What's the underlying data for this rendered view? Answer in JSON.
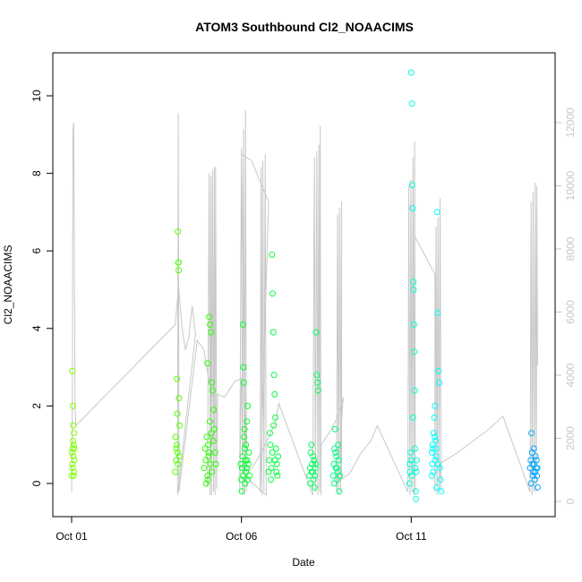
{
  "chart_data": {
    "type": "scatter",
    "title": "ATOM3 Southbound Cl2_NOAACIMS",
    "xlabel": "Date",
    "ylabel": "Cl2_NOAACIMS",
    "x_range_days": [
      0,
      14
    ],
    "ylim": [
      -0.9,
      11
    ],
    "y2lim": [
      -400,
      13200
    ],
    "x_ticks": [
      {
        "day": 0,
        "label": "Oct 01"
      },
      {
        "day": 5,
        "label": "Oct 06"
      },
      {
        "day": 10,
        "label": "Oct 11"
      }
    ],
    "y_ticks": [
      0,
      2,
      4,
      6,
      8,
      10
    ],
    "y2_ticks": [
      0,
      2000,
      4000,
      6000,
      8000,
      10000,
      12000
    ],
    "secondary_series": {
      "description_hidden": true,
      "color": "#c8c8c8",
      "points": [
        [
          0.0,
          300
        ],
        [
          0.02,
          3000
        ],
        [
          0.04,
          11800
        ],
        [
          0.06,
          12000
        ],
        [
          0.08,
          8000
        ],
        [
          0.1,
          3000
        ],
        [
          0.12,
          2400
        ],
        [
          3.05,
          5600
        ],
        [
          3.15,
          6800
        ],
        [
          3.25,
          5500
        ],
        [
          3.35,
          4800
        ],
        [
          3.45,
          5200
        ],
        [
          3.55,
          6200
        ],
        [
          3.65,
          5300
        ],
        [
          3.12,
          200
        ],
        [
          3.14,
          12300
        ],
        [
          3.16,
          300
        ],
        [
          3.7,
          5100
        ],
        [
          3.9,
          4800
        ],
        [
          4.0,
          4100
        ],
        [
          4.1,
          3500
        ],
        [
          4.2,
          3200
        ],
        [
          4.25,
          3000
        ],
        [
          4.0,
          500
        ],
        [
          4.05,
          10400
        ],
        [
          4.08,
          200
        ],
        [
          4.1,
          10300
        ],
        [
          4.12,
          200
        ],
        [
          4.15,
          10500
        ],
        [
          4.18,
          300
        ],
        [
          4.2,
          10600
        ],
        [
          4.22,
          200
        ],
        [
          4.24,
          10600
        ],
        [
          4.27,
          400
        ],
        [
          4.3,
          3400
        ],
        [
          4.5,
          3300
        ],
        [
          4.8,
          3800
        ],
        [
          5.0,
          3900
        ],
        [
          4.95,
          300
        ],
        [
          5.0,
          11200
        ],
        [
          5.03,
          200
        ],
        [
          5.06,
          11800
        ],
        [
          5.09,
          200
        ],
        [
          5.12,
          12400
        ],
        [
          5.15,
          300
        ],
        [
          5.0,
          11000
        ],
        [
          5.3,
          10800
        ],
        [
          5.6,
          10000
        ],
        [
          5.8,
          9500
        ],
        [
          5.55,
          300
        ],
        [
          5.58,
          10600
        ],
        [
          5.6,
          200
        ],
        [
          5.63,
          10800
        ],
        [
          5.66,
          300
        ],
        [
          5.7,
          11000
        ],
        [
          5.73,
          200
        ],
        [
          5.1,
          800
        ],
        [
          5.4,
          1200
        ],
        [
          5.7,
          1800
        ],
        [
          6.0,
          2500
        ],
        [
          6.1,
          3100
        ],
        [
          7.1,
          200
        ],
        [
          7.15,
          10900
        ],
        [
          7.18,
          300
        ],
        [
          7.22,
          11100
        ],
        [
          7.25,
          200
        ],
        [
          7.28,
          11300
        ],
        [
          7.3,
          300
        ],
        [
          7.32,
          11900
        ],
        [
          7.34,
          200
        ],
        [
          7.35,
          1800
        ],
        [
          7.6,
          2200
        ],
        [
          7.8,
          2600
        ],
        [
          8.0,
          3300
        ],
        [
          7.8,
          300
        ],
        [
          7.83,
          9100
        ],
        [
          7.86,
          200
        ],
        [
          7.89,
          9300
        ],
        [
          7.92,
          300
        ],
        [
          7.95,
          9500
        ],
        [
          7.95,
          700
        ],
        [
          8.2,
          900
        ],
        [
          8.5,
          1500
        ],
        [
          8.8,
          1900
        ],
        [
          9.0,
          2400
        ],
        [
          9.9,
          300
        ],
        [
          9.93,
          10000
        ],
        [
          9.96,
          200
        ],
        [
          9.99,
          10200
        ],
        [
          10.02,
          300
        ],
        [
          10.05,
          10900
        ],
        [
          10.08,
          200
        ],
        [
          10.1,
          11400
        ],
        [
          10.12,
          300
        ],
        [
          10.1,
          8400
        ],
        [
          10.4,
          7800
        ],
        [
          10.7,
          7200
        ],
        [
          10.7,
          300
        ],
        [
          10.73,
          8700
        ],
        [
          10.76,
          200
        ],
        [
          10.79,
          9000
        ],
        [
          10.82,
          300
        ],
        [
          10.85,
          9600
        ],
        [
          10.88,
          300
        ],
        [
          10.85,
          1200
        ],
        [
          11.3,
          1500
        ],
        [
          11.8,
          1900
        ],
        [
          12.3,
          2300
        ],
        [
          12.7,
          2700
        ],
        [
          13.5,
          300
        ],
        [
          13.53,
          9500
        ],
        [
          13.56,
          200
        ],
        [
          13.59,
          9800
        ],
        [
          13.62,
          300
        ],
        [
          13.65,
          10100
        ],
        [
          13.68,
          300
        ],
        [
          13.7,
          10000
        ],
        [
          13.72,
          4300
        ]
      ]
    },
    "series": [
      {
        "color": "#80ff00",
        "points": [
          [
            0.0,
            0.2
          ],
          [
            0.02,
            0.5
          ],
          [
            0.03,
            0.9
          ],
          [
            0.04,
            1.1
          ],
          [
            0.05,
            0.7
          ],
          [
            0.06,
            1.0
          ],
          [
            0.07,
            0.3
          ],
          [
            0.08,
            0.6
          ],
          [
            0.02,
            2.9
          ],
          [
            0.04,
            2.0
          ],
          [
            0.05,
            1.5
          ],
          [
            0.06,
            0.2
          ],
          [
            0.01,
            0.8
          ],
          [
            0.03,
            0.4
          ],
          [
            0.07,
            1.3
          ],
          [
            0.08,
            0.9
          ]
        ]
      },
      {
        "color": "#55ff00",
        "points": [
          [
            3.05,
            0.3
          ],
          [
            3.08,
            0.6
          ],
          [
            3.1,
            1.0
          ],
          [
            3.12,
            0.8
          ],
          [
            3.14,
            5.7
          ],
          [
            3.15,
            5.7
          ],
          [
            3.15,
            5.5
          ],
          [
            3.13,
            6.5
          ],
          [
            3.1,
            2.7
          ],
          [
            3.16,
            2.2
          ],
          [
            3.18,
            1.5
          ],
          [
            3.06,
            1.2
          ],
          [
            3.09,
            0.9
          ],
          [
            3.11,
            1.8
          ],
          [
            3.13,
            0.5
          ],
          [
            3.17,
            0.7
          ]
        ]
      },
      {
        "color": "#2bff00",
        "points": [
          [
            3.9,
            0.4
          ],
          [
            3.95,
            0.6
          ],
          [
            4.0,
            0.2
          ],
          [
            4.02,
            1.0
          ],
          [
            4.05,
            4.3
          ],
          [
            4.08,
            4.1
          ],
          [
            4.1,
            3.9
          ],
          [
            4.12,
            2.6
          ],
          [
            4.15,
            2.4
          ],
          [
            4.18,
            1.9
          ],
          [
            4.0,
            3.1
          ],
          [
            4.2,
            1.4
          ],
          [
            4.22,
            0.8
          ],
          [
            4.25,
            0.5
          ],
          [
            3.93,
            0.9
          ],
          [
            3.98,
            1.2
          ],
          [
            4.03,
            0.7
          ],
          [
            4.07,
            1.6
          ],
          [
            4.13,
            0.3
          ],
          [
            4.17,
            1.1
          ],
          [
            3.96,
            0.0
          ],
          [
            4.01,
            0.1
          ],
          [
            4.04,
            0.8
          ],
          [
            4.09,
            0.5
          ],
          [
            4.11,
            1.3
          ]
        ]
      },
      {
        "color": "#00ff2b",
        "points": [
          [
            5.0,
            0.1
          ],
          [
            5.02,
            0.4
          ],
          [
            5.04,
            0.2
          ],
          [
            5.05,
            4.1
          ],
          [
            5.06,
            3.0
          ],
          [
            5.07,
            2.6
          ],
          [
            5.08,
            1.2
          ],
          [
            5.1,
            0.9
          ],
          [
            5.12,
            0.6
          ],
          [
            5.14,
            0.3
          ],
          [
            5.16,
            1.6
          ],
          [
            5.18,
            2.0
          ],
          [
            5.2,
            0.5
          ],
          [
            5.22,
            0.8
          ],
          [
            5.24,
            0.2
          ],
          [
            4.98,
            0.5
          ],
          [
            5.01,
            -0.2
          ],
          [
            5.03,
            0.7
          ],
          [
            5.09,
            1.4
          ],
          [
            5.11,
            0.0
          ],
          [
            5.13,
            1.0
          ],
          [
            5.15,
            0.4
          ],
          [
            5.17,
            0.6
          ],
          [
            5.19,
            0.1
          ]
        ]
      },
      {
        "color": "#00ff40",
        "points": [
          [
            5.8,
            0.3
          ],
          [
            5.82,
            0.6
          ],
          [
            5.85,
            1.0
          ],
          [
            5.88,
            0.4
          ],
          [
            5.9,
            5.9
          ],
          [
            5.92,
            4.9
          ],
          [
            5.94,
            3.9
          ],
          [
            5.96,
            2.8
          ],
          [
            5.98,
            2.3
          ],
          [
            6.0,
            1.7
          ],
          [
            6.02,
            0.9
          ],
          [
            6.04,
            0.5
          ],
          [
            6.06,
            0.2
          ],
          [
            6.08,
            0.7
          ],
          [
            5.84,
            1.3
          ],
          [
            5.87,
            0.1
          ],
          [
            5.91,
            0.8
          ],
          [
            5.95,
            1.5
          ],
          [
            5.99,
            0.6
          ],
          [
            6.03,
            0.3
          ]
        ]
      },
      {
        "color": "#00ff60",
        "points": [
          [
            7.0,
            0.2
          ],
          [
            7.02,
            0.4
          ],
          [
            7.04,
            0.8
          ],
          [
            7.06,
            1.0
          ],
          [
            7.08,
            0.5
          ],
          [
            7.1,
            0.3
          ],
          [
            7.12,
            0.1
          ],
          [
            7.14,
            0.6
          ],
          [
            7.16,
            0.2
          ],
          [
            7.18,
            0.4
          ],
          [
            7.2,
            3.9
          ],
          [
            7.22,
            2.8
          ],
          [
            7.24,
            2.6
          ],
          [
            7.26,
            2.4
          ],
          [
            7.03,
            0.0
          ],
          [
            7.07,
            0.3
          ],
          [
            7.11,
            0.7
          ],
          [
            7.15,
            -0.1
          ],
          [
            7.19,
            0.5
          ]
        ]
      },
      {
        "color": "#00ff80",
        "points": [
          [
            7.7,
            0.2
          ],
          [
            7.72,
            0.5
          ],
          [
            7.74,
            0.9
          ],
          [
            7.76,
            1.4
          ],
          [
            7.78,
            0.4
          ],
          [
            7.8,
            0.7
          ],
          [
            7.82,
            0.1
          ],
          [
            7.84,
            0.3
          ],
          [
            7.86,
            0.6
          ],
          [
            7.88,
            -0.2
          ],
          [
            7.9,
            0.2
          ],
          [
            7.73,
            0.0
          ],
          [
            7.77,
            0.8
          ],
          [
            7.81,
            0.4
          ],
          [
            7.85,
            1.0
          ]
        ]
      },
      {
        "color": "#00ffd5",
        "points": [
          [
            9.95,
            0.0
          ],
          [
            9.97,
            0.3
          ],
          [
            9.99,
            0.6
          ],
          [
            10.0,
            10.6
          ],
          [
            10.02,
            9.8
          ],
          [
            10.03,
            7.7
          ],
          [
            10.04,
            7.1
          ],
          [
            10.06,
            5.2
          ],
          [
            10.07,
            5.0
          ],
          [
            10.08,
            4.1
          ],
          [
            10.09,
            3.4
          ],
          [
            10.1,
            2.4
          ],
          [
            10.05,
            1.7
          ],
          [
            10.11,
            0.9
          ],
          [
            10.12,
            0.4
          ],
          [
            10.13,
            -0.2
          ],
          [
            10.14,
            -0.4
          ],
          [
            9.96,
            0.5
          ],
          [
            9.98,
            0.8
          ],
          [
            10.01,
            0.2
          ],
          [
            10.15,
            0.3
          ],
          [
            10.16,
            0.6
          ]
        ]
      },
      {
        "color": "#00ffff",
        "points": [
          [
            10.6,
            0.2
          ],
          [
            10.62,
            0.5
          ],
          [
            10.64,
            0.9
          ],
          [
            10.66,
            1.3
          ],
          [
            10.68,
            1.7
          ],
          [
            10.7,
            2.0
          ],
          [
            10.72,
            1.1
          ],
          [
            10.74,
            0.7
          ],
          [
            10.76,
            7.0
          ],
          [
            10.78,
            4.4
          ],
          [
            10.8,
            2.9
          ],
          [
            10.82,
            2.6
          ],
          [
            10.84,
            0.4
          ],
          [
            10.86,
            0.1
          ],
          [
            10.88,
            -0.2
          ],
          [
            10.61,
            0.8
          ],
          [
            10.63,
            1.0
          ],
          [
            10.65,
            0.3
          ],
          [
            10.69,
            1.2
          ],
          [
            10.71,
            0.6
          ],
          [
            10.73,
            0.9
          ],
          [
            10.75,
            -0.1
          ],
          [
            10.79,
            0.5
          ]
        ]
      },
      {
        "color": "#00a8ff",
        "points": [
          [
            13.5,
            0.4
          ],
          [
            13.52,
            0.6
          ],
          [
            13.54,
            1.3
          ],
          [
            13.56,
            0.8
          ],
          [
            13.58,
            0.2
          ],
          [
            13.6,
            0.3
          ],
          [
            13.62,
            0.5
          ],
          [
            13.64,
            0.1
          ],
          [
            13.66,
            0.7
          ],
          [
            13.68,
            0.4
          ],
          [
            13.7,
            0.2
          ],
          [
            13.72,
            -0.1
          ],
          [
            13.53,
            0.0
          ],
          [
            13.57,
            0.5
          ],
          [
            13.61,
            0.9
          ],
          [
            13.65,
            0.3
          ],
          [
            13.69,
            0.6
          ],
          [
            13.71,
            0.4
          ]
        ]
      }
    ]
  }
}
